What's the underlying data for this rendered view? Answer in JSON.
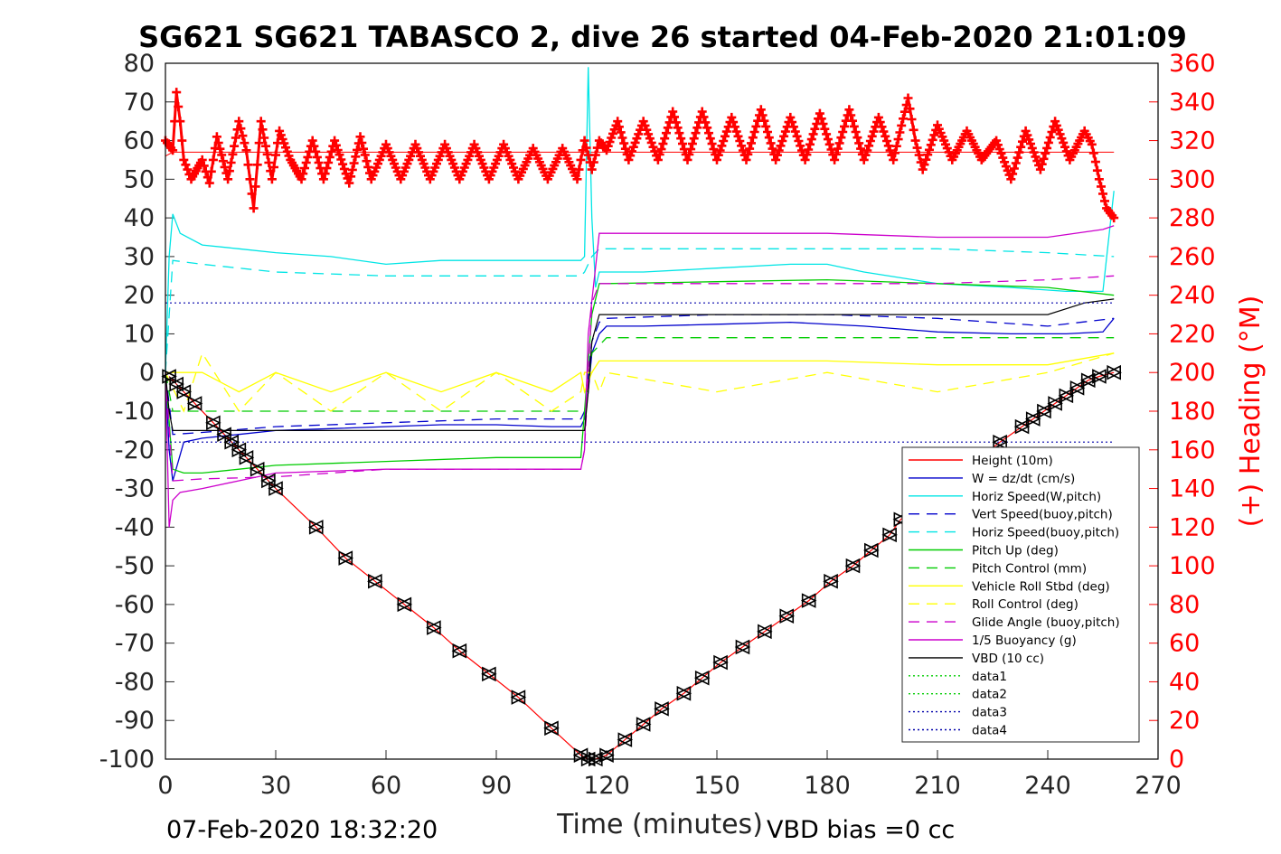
{
  "chart_data": {
    "type": "line",
    "title": "SG621 SG621 TABASCO 2, dive 26 started 04-Feb-2020 21:01:09",
    "xlabel": "Time (minutes)",
    "ylabel_right": "(+) Heading (°M)",
    "xlim": [
      0,
      270
    ],
    "ylim": [
      -100,
      80
    ],
    "ylim_right": [
      0,
      360
    ],
    "x_ticks": [
      "0",
      "30",
      "60",
      "90",
      "120",
      "150",
      "180",
      "210",
      "240",
      "270"
    ],
    "y_ticks": [
      "80",
      "70",
      "60",
      "50",
      "40",
      "30",
      "20",
      "10",
      "0",
      "-10",
      "-20",
      "-30",
      "-40",
      "-50",
      "-60",
      "-70",
      "-80",
      "-90",
      "-100"
    ],
    "y_ticks_right": [
      "360",
      "340",
      "320",
      "300",
      "280",
      "260",
      "240",
      "220",
      "200",
      "180",
      "160",
      "140",
      "120",
      "100",
      "80",
      "60",
      "40",
      "20",
      "0"
    ],
    "grid": false,
    "legend_position": "bottom-right",
    "footer_left": "07-Feb-2020 18:32:20",
    "footer_right": "VBD bias =0 cc",
    "colors": {
      "height": "#ff0000",
      "w": "#0000cc",
      "horiz": "#00e5e5",
      "vert_buoy": "#0000cc",
      "horiz_buoy": "#00e5e5",
      "pitch": "#00cc00",
      "pitch_ctrl": "#00cc00",
      "roll": "#ffff00",
      "roll_ctrl": "#ffff00",
      "glide": "#cc00cc",
      "buoyancy": "#cc00cc",
      "vbd": "#000000",
      "heading": "#ff0000"
    },
    "series": [
      {
        "name": "Height (10m)",
        "x": [
          0,
          2,
          6,
          12,
          20,
          30,
          45,
          60,
          75,
          90,
          105,
          112,
          114,
          116,
          118,
          120,
          130,
          150,
          170,
          190,
          210,
          230,
          245,
          255,
          258
        ],
        "y": [
          56,
          57,
          57,
          57,
          57,
          57,
          57,
          57,
          57,
          57,
          57,
          57,
          57,
          57,
          57,
          57,
          57,
          57,
          57,
          57,
          57,
          57,
          57,
          57,
          57
        ]
      },
      {
        "name": "W = dz/dt (cm/s)",
        "x": [
          0,
          1,
          2,
          5,
          10,
          20,
          30,
          45,
          60,
          75,
          90,
          105,
          113,
          114,
          115,
          116,
          118,
          120,
          130,
          150,
          170,
          190,
          210,
          230,
          245,
          255,
          258
        ],
        "y": [
          0,
          -20,
          -28,
          -18,
          -17,
          -16,
          -15,
          -14.5,
          -14,
          -13.5,
          -13.5,
          -14,
          -14,
          -12,
          -5,
          5,
          10,
          12,
          12,
          12.5,
          13,
          12,
          10.5,
          10,
          10,
          10.5,
          14
        ]
      },
      {
        "name": "Horiz Speed(W,pitch)",
        "x": [
          0,
          1,
          2,
          4,
          10,
          20,
          30,
          45,
          60,
          75,
          90,
          105,
          113,
          114,
          115,
          116,
          117,
          118,
          120,
          130,
          150,
          170,
          180,
          190,
          210,
          230,
          245,
          255,
          258
        ],
        "y": [
          0,
          30,
          41,
          36,
          33,
          32,
          31,
          30,
          28,
          29,
          29,
          29,
          29,
          30,
          79,
          40,
          22,
          26,
          26,
          26,
          27,
          28,
          28,
          26,
          23,
          22,
          21,
          21,
          47
        ]
      },
      {
        "name": "Vert Speed(buoy,pitch)",
        "x": [
          0,
          2,
          10,
          30,
          60,
          90,
          113,
          114,
          116,
          118,
          120,
          150,
          180,
          210,
          240,
          258
        ],
        "y": [
          0,
          -16,
          -15.5,
          -14,
          -13,
          -12,
          -12,
          -10,
          8,
          13,
          14,
          15,
          15,
          14,
          12,
          14
        ]
      },
      {
        "name": "Horiz Speed(buoy,pitch)",
        "x": [
          0,
          2,
          10,
          30,
          60,
          90,
          113,
          114,
          116,
          118,
          120,
          150,
          180,
          210,
          240,
          258
        ],
        "y": [
          0,
          29,
          28,
          26,
          25,
          25,
          25,
          26,
          30,
          32,
          32,
          32,
          32,
          32,
          31,
          30
        ]
      },
      {
        "name": "Pitch Up (deg)",
        "x": [
          0,
          2,
          5,
          10,
          20,
          30,
          60,
          90,
          113,
          114,
          116,
          118,
          120,
          150,
          180,
          210,
          240,
          258
        ],
        "y": [
          0,
          -25,
          -26,
          -26,
          -25,
          -24,
          -23,
          -22,
          -22,
          -10,
          15,
          23,
          23,
          23.5,
          24,
          23,
          22,
          20
        ]
      },
      {
        "name": "Pitch Control (mm)",
        "x": [
          0,
          2,
          114,
          116,
          120,
          258
        ],
        "y": [
          0,
          -10,
          -10,
          5,
          9,
          9
        ]
      },
      {
        "name": "Vehicle Roll Stbd (deg)",
        "x": [
          0,
          5,
          10,
          20,
          30,
          45,
          60,
          75,
          90,
          105,
          113,
          114,
          116,
          118,
          120,
          150,
          180,
          210,
          240,
          258
        ],
        "y": [
          0,
          0,
          0,
          -5,
          0,
          -5,
          0,
          -5,
          0,
          -5,
          0,
          -5,
          0,
          3,
          3,
          3,
          3,
          2,
          2,
          5
        ]
      },
      {
        "name": "Roll Control (deg)",
        "x": [
          0,
          5,
          10,
          20,
          30,
          45,
          60,
          75,
          90,
          105,
          113,
          114,
          116,
          118,
          120,
          150,
          180,
          210,
          240,
          258
        ],
        "y": [
          0,
          -10,
          5,
          -10,
          0,
          -10,
          0,
          -10,
          0,
          -10,
          -5,
          0,
          0,
          -5,
          0,
          -5,
          0,
          -5,
          0,
          5
        ]
      },
      {
        "name": "Glide Angle (buoy,pitch)",
        "x": [
          0,
          2,
          10,
          30,
          60,
          90,
          113,
          114,
          116,
          118,
          120,
          150,
          180,
          210,
          240,
          258
        ],
        "y": [
          0,
          -28,
          -27.5,
          -27,
          -25,
          -25,
          -25,
          -20,
          18,
          23,
          23,
          23,
          23,
          23,
          24,
          25
        ]
      },
      {
        "name": "1/5 Buoyancy (g)",
        "x": [
          0,
          1,
          2,
          4,
          10,
          20,
          30,
          60,
          90,
          113,
          114,
          115,
          118,
          120,
          150,
          180,
          210,
          240,
          255,
          258
        ],
        "y": [
          0,
          -40,
          -33,
          -31,
          -30,
          -28,
          -26,
          -25,
          -25,
          -25,
          -20,
          10,
          36,
          36,
          36,
          36,
          35,
          35,
          37,
          38
        ]
      },
      {
        "name": "VBD (10 cc)",
        "x": [
          0,
          1,
          2,
          5,
          30,
          60,
          90,
          113,
          114,
          115,
          116,
          118,
          120,
          150,
          180,
          210,
          240,
          250,
          258
        ],
        "y": [
          0,
          -10,
          -15,
          -15,
          -15,
          -15,
          -15,
          -15,
          -15,
          -5,
          8,
          15,
          15,
          15,
          15,
          15,
          15,
          18,
          19
        ]
      },
      {
        "name": "data1",
        "x": [],
        "y": []
      },
      {
        "name": "data2",
        "x": [],
        "y": []
      },
      {
        "name": "data3",
        "x": [
          0,
          258
        ],
        "y": [
          18,
          18
        ]
      },
      {
        "name": "data4",
        "x": [
          0,
          258
        ],
        "y": [
          -18,
          -18
        ]
      }
    ],
    "depth_markers": {
      "x": [
        1,
        3,
        5,
        8,
        13,
        16,
        18,
        20,
        22,
        25,
        28,
        30,
        41,
        49,
        57,
        65,
        73,
        80,
        88,
        96,
        105,
        113,
        115,
        117,
        120,
        125,
        130,
        135,
        141,
        146,
        151,
        157,
        163,
        169,
        175,
        181,
        187,
        192,
        197,
        200,
        227,
        233,
        236,
        239,
        242,
        245,
        248,
        251,
        254,
        258
      ],
      "y": [
        -1,
        -3,
        -5,
        -8,
        -13,
        -16,
        -18,
        -20,
        -22,
        -25,
        -28,
        -30,
        -40,
        -48,
        -54,
        -60,
        -66,
        -72,
        -78,
        -84,
        -92,
        -99,
        -100,
        -100,
        -99,
        -95,
        -91,
        -87,
        -83,
        -79,
        -75,
        -71,
        -67,
        -63,
        -59,
        -54,
        -50,
        -46,
        -42,
        -38,
        -18,
        -14,
        -12,
        -10,
        -8,
        -6,
        -4,
        -2,
        -1,
        0
      ]
    },
    "heading": {
      "name": "Heading",
      "x": [
        0,
        2,
        3,
        4,
        5,
        7,
        10,
        12,
        14,
        17,
        20,
        22,
        24,
        26,
        29,
        31,
        34,
        37,
        40,
        43,
        46,
        50,
        53,
        56,
        60,
        64,
        68,
        72,
        76,
        80,
        84,
        88,
        92,
        96,
        100,
        104,
        108,
        112,
        114,
        116,
        118,
        120,
        123,
        126,
        130,
        134,
        138,
        142,
        146,
        150,
        154,
        158,
        162,
        166,
        170,
        174,
        178,
        182,
        186,
        190,
        194,
        198,
        202,
        204,
        206,
        210,
        214,
        218,
        222,
        226,
        230,
        234,
        238,
        242,
        246,
        250,
        252,
        254,
        256,
        258
      ],
      "y": [
        320,
        315,
        345,
        330,
        310,
        300,
        310,
        298,
        322,
        300,
        330,
        315,
        285,
        330,
        300,
        325,
        310,
        300,
        320,
        300,
        320,
        298,
        322,
        300,
        318,
        300,
        318,
        300,
        318,
        300,
        318,
        300,
        318,
        300,
        316,
        300,
        316,
        300,
        320,
        305,
        320,
        315,
        330,
        310,
        330,
        310,
        335,
        310,
        335,
        310,
        332,
        310,
        336,
        310,
        332,
        310,
        334,
        310,
        336,
        310,
        332,
        310,
        342,
        320,
        305,
        328,
        310,
        325,
        310,
        320,
        300,
        325,
        305,
        330,
        310,
        325,
        318,
        300,
        285,
        280
      ]
    }
  }
}
